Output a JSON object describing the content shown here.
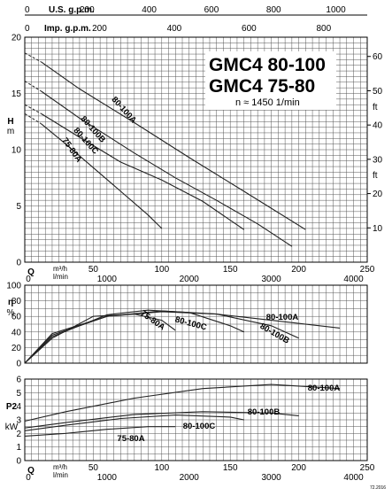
{
  "top_axes": {
    "usgpm": {
      "label": "U.S. g.p.m.",
      "ticks": [
        "0",
        "200",
        "400",
        "600",
        "800",
        "1000"
      ],
      "values": [
        0,
        200,
        400,
        600,
        800,
        1000
      ]
    },
    "impgpm": {
      "label": "Imp. g.p.m.",
      "ticks": [
        "0",
        "200",
        "400",
        "600",
        "800"
      ],
      "values": [
        0,
        200,
        400,
        600,
        800
      ]
    }
  },
  "chart_data": [
    {
      "type": "line",
      "title": "GMC4 80-100",
      "subtitle": "GMC4 75-80",
      "speed_note": "n ≈ 1450 1/min",
      "ylabel": "H",
      "yunit": "m",
      "y2unit": "ft",
      "xlim": [
        0,
        250
      ],
      "ylim": [
        0,
        20
      ],
      "y_ticks": [
        0,
        5,
        10,
        15,
        20
      ],
      "y2_ticks": [
        "10",
        "20",
        "30",
        "40",
        "50",
        "60"
      ],
      "y2_values": [
        10,
        20,
        30,
        40,
        50,
        60
      ],
      "grid": true,
      "series": [
        {
          "name": "80-100A",
          "dashed": [
            [
              0,
              18.6
            ],
            [
              12,
              17.8
            ]
          ],
          "x": [
            12,
            40,
            80,
            120,
            160,
            205
          ],
          "y": [
            17.8,
            15.4,
            12.4,
            9.3,
            6.3,
            2.9
          ]
        },
        {
          "name": "80-100B",
          "dashed": [
            [
              0,
              16.1
            ],
            [
              12,
              15.2
            ]
          ],
          "x": [
            12,
            40,
            80,
            110,
            140,
            170,
            195
          ],
          "y": [
            15.2,
            12.8,
            9.7,
            7.5,
            5.5,
            3.4,
            1.4
          ]
        },
        {
          "name": "80-100C",
          "dashed": [
            [
              0,
              14.0
            ],
            [
              12,
              13.2
            ]
          ],
          "x": [
            12,
            40,
            70,
            100,
            130,
            160
          ],
          "y": [
            13.2,
            11.1,
            8.9,
            7.3,
            5.4,
            2.9
          ]
        },
        {
          "name": "75-80A",
          "dashed": [
            [
              0,
              13.2
            ],
            [
              12,
              12.3
            ]
          ],
          "x": [
            12,
            30,
            50,
            70,
            90,
            100
          ],
          "y": [
            12.3,
            10.5,
            8.4,
            6.3,
            4.2,
            3.0
          ]
        }
      ],
      "series_labels": [
        "80-100A",
        "80-100B",
        "80-100C",
        "75-80A"
      ]
    },
    {
      "type": "line",
      "ylabel": "η",
      "yunit": "%",
      "xlim": [
        0,
        250
      ],
      "ylim": [
        0,
        100
      ],
      "y_ticks": [
        0,
        20,
        40,
        60,
        80,
        100
      ],
      "grid": true,
      "series": [
        {
          "name": "80-100A",
          "x": [
            0,
            20,
            60,
            100,
            140,
            180,
            230
          ],
          "y": [
            0,
            38,
            60,
            66,
            63,
            55,
            45
          ]
        },
        {
          "name": "80-100B",
          "x": [
            0,
            20,
            60,
            100,
            140,
            180,
            200
          ],
          "y": [
            0,
            36,
            60,
            67,
            63,
            48,
            32
          ]
        },
        {
          "name": "80-100C",
          "x": [
            0,
            20,
            60,
            90,
            120,
            150,
            160
          ],
          "y": [
            0,
            34,
            62,
            68,
            65,
            48,
            40
          ]
        },
        {
          "name": "75-80A",
          "x": [
            0,
            20,
            50,
            80,
            100,
            110
          ],
          "y": [
            0,
            32,
            60,
            63,
            55,
            42
          ]
        }
      ],
      "series_labels": [
        "80-100A",
        "80-100C",
        "75-80A",
        "80-100B"
      ]
    },
    {
      "type": "line",
      "ylabel": "P2",
      "yunit": "kW",
      "xlim": [
        0,
        250
      ],
      "ylim": [
        0,
        6
      ],
      "y_ticks": [
        0,
        1,
        2,
        3,
        4,
        5,
        6
      ],
      "grid": true,
      "series": [
        {
          "name": "80-100A",
          "x": [
            0,
            30,
            80,
            130,
            180,
            230
          ],
          "y": [
            2.9,
            3.6,
            4.6,
            5.3,
            5.6,
            5.3
          ]
        },
        {
          "name": "80-100B",
          "x": [
            0,
            30,
            80,
            130,
            180,
            200
          ],
          "y": [
            2.4,
            2.8,
            3.4,
            3.6,
            3.5,
            3.3
          ]
        },
        {
          "name": "80-100C",
          "x": [
            0,
            30,
            70,
            110,
            150,
            160
          ],
          "y": [
            2.2,
            2.6,
            3.1,
            3.35,
            3.2,
            3.0
          ]
        },
        {
          "name": "75-80A",
          "x": [
            0,
            30,
            60,
            90,
            110
          ],
          "y": [
            1.8,
            2.0,
            2.3,
            2.5,
            2.5
          ]
        }
      ],
      "series_labels": [
        "80-100A",
        "80-100B",
        "80-100C",
        "75-80A"
      ]
    }
  ],
  "bottom_axes": {
    "q_label": "Q",
    "q_unit_1": "m³/h",
    "q_unit_2": "l/min",
    "m3h_ticks": [
      "0",
      "50",
      "100",
      "150",
      "200",
      "250"
    ],
    "m3h_values": [
      0,
      50,
      100,
      150,
      200,
      250
    ],
    "lmin_ticks": [
      "0",
      "1000",
      "2000",
      "3000",
      "4000"
    ],
    "lmin_values": [
      0,
      1000,
      2000,
      3000,
      4000
    ]
  },
  "doc_code": "72.2016",
  "colors": {
    "line": "#222222",
    "grid": "#555555"
  }
}
